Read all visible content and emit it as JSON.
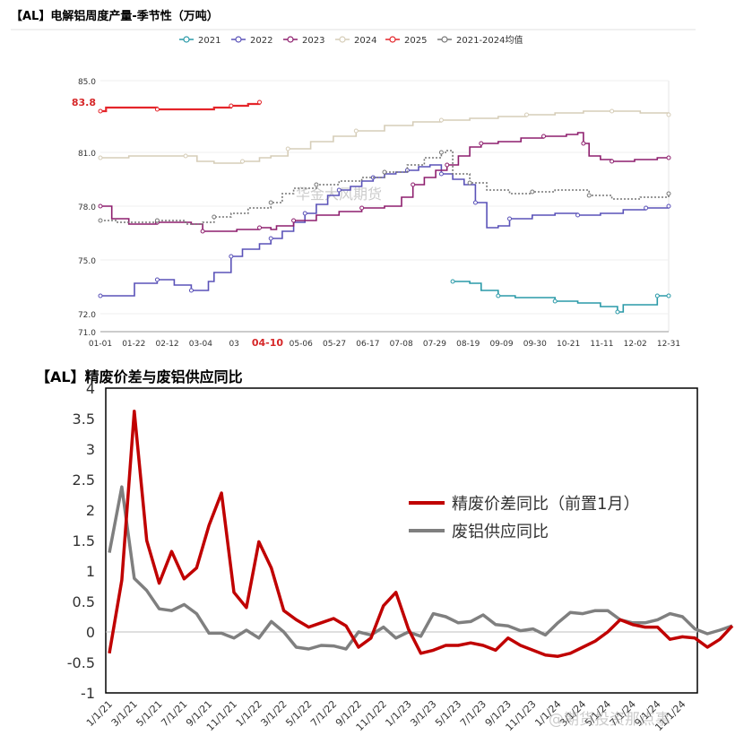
{
  "chart_data": [
    {
      "type": "line",
      "title": "【AL】电解铝周度产量-季节性（万吨）",
      "watermark": "华金大风期货",
      "ylim": [
        71.0,
        85.0
      ],
      "y_ticks": [
        "71.0",
        "72.0",
        "75.0",
        "78.0",
        "81.0",
        "83.8",
        "85.0"
      ],
      "highlight_y_tick": "83.8",
      "categories": [
        "01-01",
        "01-22",
        "02-12",
        "03-04",
        "03",
        "04-10",
        "05-06",
        "05-27",
        "06-17",
        "07-08",
        "07-29",
        "08-19",
        "09-09",
        "09-30",
        "10-21",
        "11-11",
        "12-02",
        "12-31"
      ],
      "highlight_x_tick": "04-10",
      "colors": {
        "2021": "#2a9aa8",
        "2022": "#5a52b8",
        "2023": "#8e1f6e",
        "2024": "#d6cdb8",
        "2025": "#e4252a",
        "avg": "#777777"
      },
      "series": [
        {
          "name": "2021",
          "key": "2021",
          "points": [
            [
              0.62,
              73.8
            ],
            [
              0.65,
              73.7
            ],
            [
              0.67,
              73.3
            ],
            [
              0.7,
              73.0
            ],
            [
              0.73,
              72.9
            ],
            [
              0.76,
              72.9
            ],
            [
              0.8,
              72.7
            ],
            [
              0.84,
              72.6
            ],
            [
              0.88,
              72.4
            ],
            [
              0.91,
              72.1
            ],
            [
              0.92,
              72.5
            ],
            [
              0.97,
              72.5
            ],
            [
              0.98,
              73.0
            ],
            [
              1.0,
              73.0
            ]
          ]
        },
        {
          "name": "2022",
          "key": "2022",
          "points": [
            [
              0.0,
              73.0
            ],
            [
              0.03,
              73.0
            ],
            [
              0.06,
              73.7
            ],
            [
              0.1,
              73.9
            ],
            [
              0.12,
              73.9
            ],
            [
              0.13,
              73.6
            ],
            [
              0.16,
              73.3
            ],
            [
              0.19,
              73.8
            ],
            [
              0.2,
              74.3
            ],
            [
              0.23,
              75.2
            ],
            [
              0.25,
              75.6
            ],
            [
              0.28,
              75.9
            ],
            [
              0.3,
              76.2
            ],
            [
              0.32,
              76.6
            ],
            [
              0.34,
              77.1
            ],
            [
              0.36,
              77.6
            ],
            [
              0.38,
              78.1
            ],
            [
              0.4,
              78.6
            ],
            [
              0.42,
              78.9
            ],
            [
              0.44,
              79.1
            ],
            [
              0.46,
              79.4
            ],
            [
              0.48,
              79.6
            ],
            [
              0.5,
              79.8
            ],
            [
              0.52,
              79.9
            ],
            [
              0.54,
              80.0
            ],
            [
              0.56,
              80.2
            ],
            [
              0.58,
              80.3
            ],
            [
              0.6,
              79.8
            ],
            [
              0.62,
              79.5
            ],
            [
              0.64,
              79.2
            ],
            [
              0.66,
              78.2
            ],
            [
              0.68,
              76.8
            ],
            [
              0.7,
              76.9
            ],
            [
              0.72,
              77.3
            ],
            [
              0.76,
              77.5
            ],
            [
              0.8,
              77.6
            ],
            [
              0.84,
              77.5
            ],
            [
              0.88,
              77.6
            ],
            [
              0.92,
              77.8
            ],
            [
              0.96,
              77.9
            ],
            [
              1.0,
              78.0
            ]
          ]
        },
        {
          "name": "2023",
          "key": "2023",
          "points": [
            [
              0.0,
              78.0
            ],
            [
              0.02,
              77.3
            ],
            [
              0.05,
              77.0
            ],
            [
              0.1,
              77.1
            ],
            [
              0.14,
              77.1
            ],
            [
              0.16,
              77.0
            ],
            [
              0.18,
              76.6
            ],
            [
              0.2,
              76.6
            ],
            [
              0.24,
              76.7
            ],
            [
              0.28,
              76.8
            ],
            [
              0.3,
              76.7
            ],
            [
              0.31,
              76.9
            ],
            [
              0.34,
              77.2
            ],
            [
              0.38,
              77.5
            ],
            [
              0.42,
              77.7
            ],
            [
              0.46,
              77.9
            ],
            [
              0.5,
              78.0
            ],
            [
              0.53,
              78.5
            ],
            [
              0.55,
              79.2
            ],
            [
              0.57,
              79.6
            ],
            [
              0.59,
              80.0
            ],
            [
              0.61,
              80.3
            ],
            [
              0.63,
              80.8
            ],
            [
              0.65,
              81.3
            ],
            [
              0.67,
              81.5
            ],
            [
              0.7,
              81.6
            ],
            [
              0.74,
              81.8
            ],
            [
              0.78,
              81.9
            ],
            [
              0.82,
              82.0
            ],
            [
              0.84,
              82.1
            ],
            [
              0.85,
              81.5
            ],
            [
              0.86,
              80.8
            ],
            [
              0.88,
              80.6
            ],
            [
              0.9,
              80.5
            ],
            [
              0.94,
              80.6
            ],
            [
              0.98,
              80.7
            ],
            [
              1.0,
              80.7
            ]
          ]
        },
        {
          "name": "2024",
          "key": "2024",
          "points": [
            [
              0.0,
              80.7
            ],
            [
              0.05,
              80.8
            ],
            [
              0.1,
              80.8
            ],
            [
              0.15,
              80.8
            ],
            [
              0.17,
              80.5
            ],
            [
              0.2,
              80.4
            ],
            [
              0.25,
              80.5
            ],
            [
              0.28,
              80.7
            ],
            [
              0.3,
              80.8
            ],
            [
              0.33,
              81.2
            ],
            [
              0.37,
              81.6
            ],
            [
              0.41,
              81.9
            ],
            [
              0.45,
              82.2
            ],
            [
              0.5,
              82.5
            ],
            [
              0.55,
              82.7
            ],
            [
              0.6,
              82.8
            ],
            [
              0.65,
              82.9
            ],
            [
              0.7,
              83.0
            ],
            [
              0.75,
              83.1
            ],
            [
              0.8,
              83.2
            ],
            [
              0.85,
              83.3
            ],
            [
              0.9,
              83.3
            ],
            [
              0.95,
              83.2
            ],
            [
              1.0,
              83.1
            ]
          ]
        },
        {
          "name": "2025",
          "key": "2025",
          "points": [
            [
              0.0,
              83.3
            ],
            [
              0.01,
              83.5
            ],
            [
              0.05,
              83.5
            ],
            [
              0.1,
              83.4
            ],
            [
              0.15,
              83.4
            ],
            [
              0.2,
              83.5
            ],
            [
              0.23,
              83.6
            ],
            [
              0.26,
              83.7
            ],
            [
              0.28,
              83.8
            ]
          ]
        },
        {
          "name": "2021-2024均值",
          "key": "avg",
          "dashed": true,
          "points": [
            [
              0.0,
              77.2
            ],
            [
              0.03,
              77.1
            ],
            [
              0.06,
              77.1
            ],
            [
              0.1,
              77.2
            ],
            [
              0.15,
              77.0
            ],
            [
              0.18,
              77.1
            ],
            [
              0.2,
              77.4
            ],
            [
              0.23,
              77.6
            ],
            [
              0.26,
              77.9
            ],
            [
              0.3,
              78.2
            ],
            [
              0.32,
              78.7
            ],
            [
              0.34,
              79.0
            ],
            [
              0.38,
              79.2
            ],
            [
              0.42,
              79.4
            ],
            [
              0.46,
              79.6
            ],
            [
              0.5,
              79.9
            ],
            [
              0.54,
              80.3
            ],
            [
              0.57,
              80.7
            ],
            [
              0.6,
              81.0
            ],
            [
              0.61,
              81.1
            ],
            [
              0.62,
              79.8
            ],
            [
              0.65,
              79.3
            ],
            [
              0.68,
              78.9
            ],
            [
              0.72,
              78.7
            ],
            [
              0.76,
              78.8
            ],
            [
              0.8,
              78.9
            ],
            [
              0.83,
              78.9
            ],
            [
              0.86,
              78.6
            ],
            [
              0.9,
              78.4
            ],
            [
              0.95,
              78.5
            ],
            [
              1.0,
              78.7
            ]
          ]
        }
      ]
    },
    {
      "type": "line",
      "title": "【AL】精废价差与废铝供应同比",
      "ylim": [
        -1,
        4
      ],
      "y_ticks": [
        "-1",
        "-0.5",
        "0",
        "0.5",
        "1",
        "1.5",
        "2",
        "2.5",
        "3",
        "3.5",
        "4"
      ],
      "x_ticks": [
        "1/1/21",
        "3/1/21",
        "5/1/21",
        "7/1/21",
        "9/1/21",
        "11/1/21",
        "1/1/22",
        "3/1/22",
        "5/1/22",
        "7/1/22",
        "9/1/22",
        "11/1/22",
        "1/1/23",
        "3/1/23",
        "5/1/23",
        "7/1/23",
        "9/1/23",
        "11/1/23",
        "1/1/24",
        "3/1/24",
        "5/1/24",
        "7/1/24",
        "9/1/24",
        "11/1/24"
      ],
      "colors": {
        "spread": "#c00000",
        "scrap": "#7f7f7f"
      },
      "watermark": "@期货投资那点事",
      "series": [
        {
          "name": "精废价差同比（前置1月）",
          "key": "spread",
          "values": [
            -0.35,
            0.85,
            3.62,
            1.5,
            0.8,
            1.32,
            0.87,
            1.05,
            1.75,
            2.28,
            0.65,
            0.4,
            1.48,
            1.05,
            0.35,
            0.2,
            0.08,
            0.15,
            0.22,
            0.1,
            -0.25,
            -0.1,
            0.43,
            0.65,
            0.05,
            -0.35,
            -0.3,
            -0.22,
            -0.22,
            -0.18,
            -0.22,
            -0.3,
            -0.1,
            -0.22,
            -0.3,
            -0.38,
            -0.4,
            -0.35,
            -0.25,
            -0.15,
            0.0,
            0.2,
            0.12,
            0.08,
            0.08,
            -0.12,
            -0.08,
            -0.1,
            -0.25,
            -0.12,
            0.1
          ]
        },
        {
          "name": "废铝供应同比",
          "key": "scrap",
          "values": [
            1.3,
            2.38,
            0.88,
            0.68,
            0.38,
            0.35,
            0.45,
            0.3,
            -0.02,
            -0.02,
            -0.1,
            0.03,
            -0.1,
            0.17,
            0.0,
            -0.25,
            -0.28,
            -0.22,
            -0.23,
            -0.28,
            0.0,
            -0.05,
            0.08,
            -0.1,
            0.0,
            -0.07,
            0.3,
            0.25,
            0.15,
            0.17,
            0.28,
            0.12,
            0.1,
            0.02,
            0.05,
            -0.05,
            0.15,
            0.32,
            0.3,
            0.35,
            0.35,
            0.2,
            0.15,
            0.15,
            0.2,
            0.3,
            0.25,
            0.05,
            -0.03,
            0.03,
            0.1
          ]
        }
      ]
    }
  ]
}
